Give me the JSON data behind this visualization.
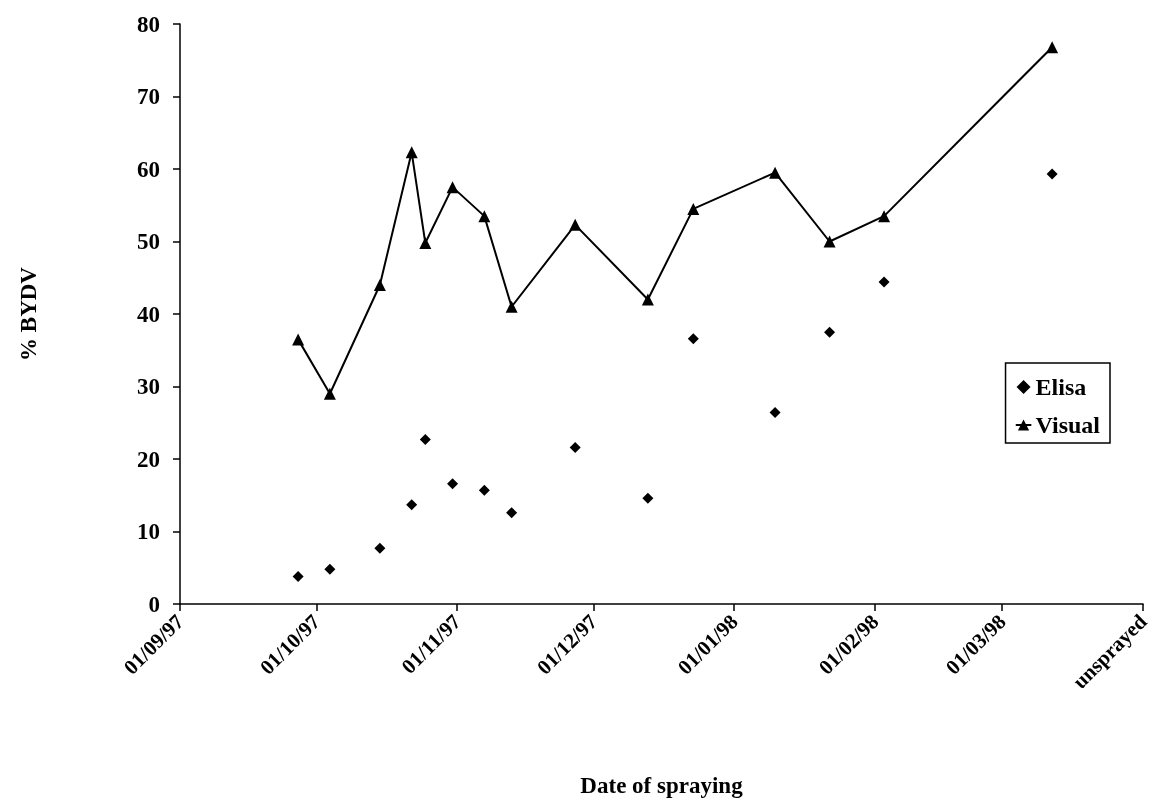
{
  "chart_data": {
    "type": "line",
    "xlabel": "Date of spraying",
    "ylabel": "% BYDV",
    "x": [
      "1997-09-27",
      "1997-10-04",
      "1997-10-15",
      "1997-10-22",
      "1997-10-25",
      "1997-10-31",
      "1997-11-07",
      "1997-11-13",
      "1997-11-27",
      "1997-12-13",
      "1997-12-23",
      "1998-01-10",
      "1998-01-22",
      "1998-02-03",
      "1998-03-12"
    ],
    "series": [
      {
        "name": "Elisa",
        "type": "scatter",
        "marker": "diamond",
        "color": "#000000",
        "values": [
          3.8,
          4.8,
          7.7,
          13.7,
          22.7,
          16.6,
          15.7,
          12.6,
          21.6,
          14.6,
          36.6,
          26.4,
          37.5,
          44.4,
          59.3
        ]
      },
      {
        "name": "Visual",
        "type": "line",
        "marker": "triangle",
        "color": "#000000",
        "values": [
          36.5,
          29,
          44,
          62.3,
          49.8,
          57.5,
          53.5,
          41,
          52.3,
          42,
          54.5,
          59.5,
          50,
          53.5,
          76.8
        ]
      }
    ],
    "xlim": [
      "1997-09-01",
      "1998-04-01"
    ],
    "xticks": [
      {
        "value": "1997-09-01",
        "label": "01/09/97"
      },
      {
        "value": "1997-10-01",
        "label": "01/10/97"
      },
      {
        "value": "1997-11-01",
        "label": "01/11/97"
      },
      {
        "value": "1997-12-01",
        "label": "01/12/97"
      },
      {
        "value": "1998-01-01",
        "label": "01/01/98"
      },
      {
        "value": "1998-02-01",
        "label": "01/02/98"
      },
      {
        "value": "1998-03-01",
        "label": "01/03/98"
      },
      {
        "value": "1998-04-01",
        "label": "unsprayed"
      }
    ],
    "ylim": [
      0,
      80
    ],
    "yticks": [
      0,
      10,
      20,
      30,
      40,
      50,
      60,
      70,
      80
    ],
    "grid": false,
    "legend": "right",
    "line_style": "solid"
  }
}
